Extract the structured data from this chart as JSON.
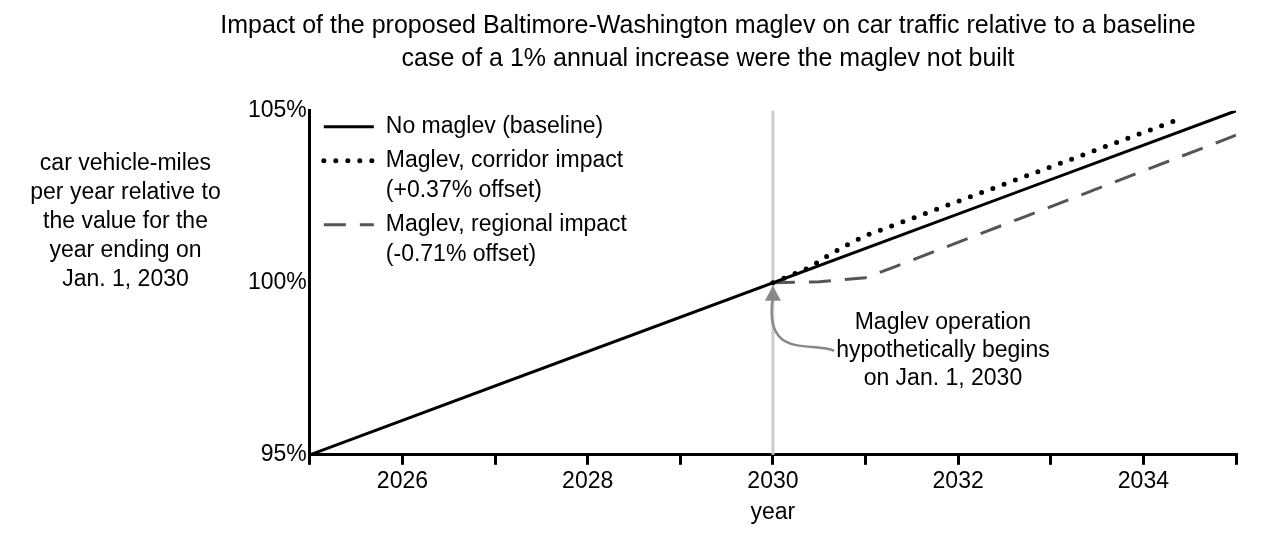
{
  "chart_data": {
    "type": "line",
    "title": "Impact of the proposed Baltimore-Washington maglev on car traffic relative to a baseline case of a 1% annual increase were the maglev not built",
    "xlabel": "year",
    "ylabel": "car vehicle-miles per year relative to the value for the year ending on Jan. 1, 2030",
    "xlim": [
      2025,
      2035
    ],
    "xticks": [
      {
        "value": 2025,
        "label": null
      },
      {
        "value": 2026,
        "label": "2026"
      },
      {
        "value": 2027,
        "label": null
      },
      {
        "value": 2028,
        "label": "2028"
      },
      {
        "value": 2029,
        "label": null
      },
      {
        "value": 2030,
        "label": "2030"
      },
      {
        "value": 2031,
        "label": null
      },
      {
        "value": 2032,
        "label": "2032"
      },
      {
        "value": 2033,
        "label": null
      },
      {
        "value": 2034,
        "label": "2034"
      },
      {
        "value": 2035,
        "label": null
      }
    ],
    "ylim": [
      95,
      105
    ],
    "yticks": [
      {
        "value": 95,
        "label": "95%"
      },
      {
        "value": 100,
        "label": "100%"
      },
      {
        "value": 105,
        "label": "105%"
      }
    ],
    "grid": false,
    "legend": "top left",
    "marker": "none",
    "series": [
      {
        "name": "No maglev (baseline)",
        "color": "#000000",
        "line_style": "solid",
        "x": [
          2025,
          2035
        ],
        "values": [
          95,
          105
        ]
      },
      {
        "name": "Maglev, corridor impact (+0.37% offset)",
        "color": "#000000",
        "line_style": "dotted",
        "x": [
          2030,
          2030.4,
          2030.6,
          2030.8,
          2031,
          2034.4
        ],
        "values": [
          100,
          100.45,
          100.8,
          101.1,
          101.37,
          104.77
        ]
      },
      {
        "name": "Maglev, regional impact (-0.71% offset)",
        "color": "#555555",
        "line_style": "dashed",
        "x": [
          2030,
          2030.5,
          2031,
          2031.3,
          2035
        ],
        "values": [
          100,
          100.03,
          100.15,
          100.45,
          104.29
        ]
      }
    ],
    "ref_lines": [
      {
        "axis": "x",
        "value": 2030,
        "color": "#cccccc"
      }
    ],
    "annotations": [
      {
        "text": "Maglev operation hypothetically begins on Jan. 1, 2030",
        "x": 2030,
        "y": 100
      }
    ]
  }
}
